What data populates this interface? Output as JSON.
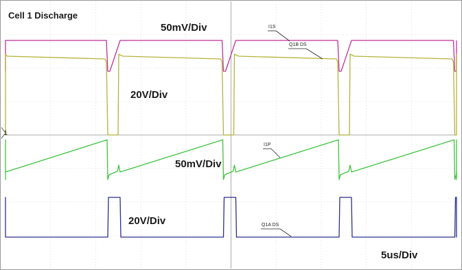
{
  "chart_data": {
    "type": "line",
    "title": "Cell 1 Discharge",
    "time_scale": "5us/Div",
    "grid": true,
    "series": [
      {
        "name": "I1S",
        "scale": "50mV/Div",
        "color": "#c0309c"
      },
      {
        "name": "Q1B DS",
        "scale": "20V/Div",
        "color": "#b5b23a"
      },
      {
        "name": "I1P",
        "scale": "50mV/Div",
        "color": "#3cc43c"
      },
      {
        "name": "Q1A DS",
        "scale": "20V/Div",
        "color": "#2a2f8c"
      }
    ],
    "channel_marker": "1"
  }
}
